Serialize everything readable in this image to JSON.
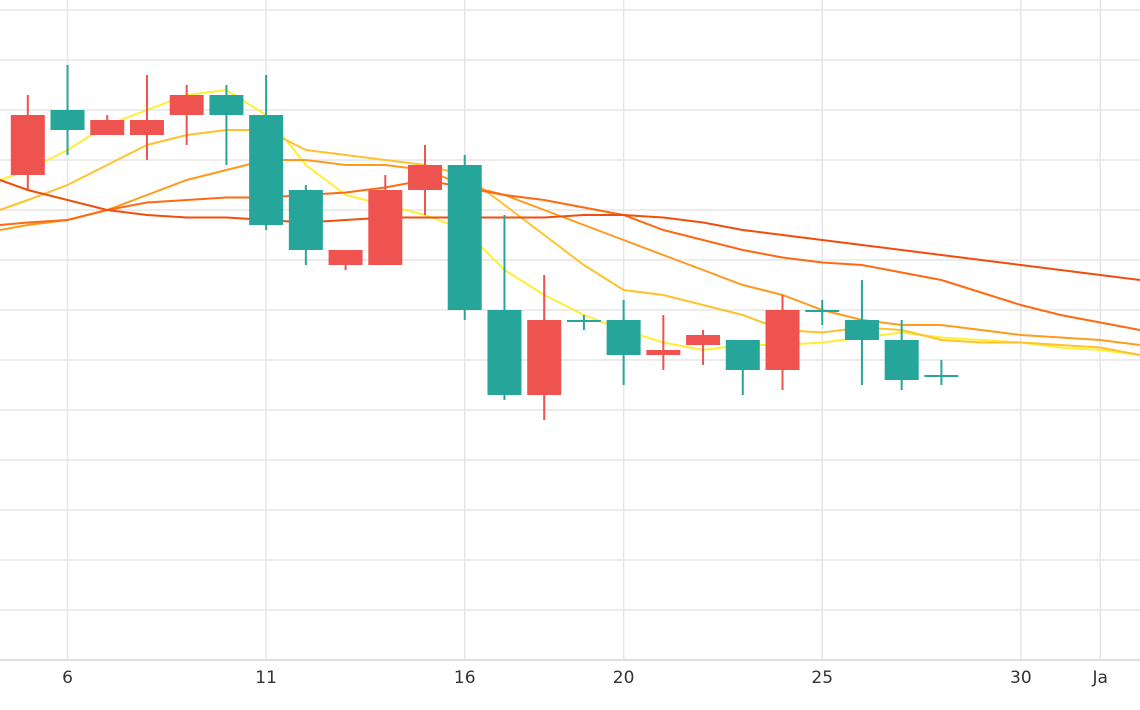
{
  "chart_data": {
    "type": "candlestick",
    "x_tick_labels": [
      {
        "x": 6,
        "label": "6"
      },
      {
        "x": 11,
        "label": "11"
      },
      {
        "x": 16,
        "label": "16"
      },
      {
        "x": 20,
        "label": "20"
      },
      {
        "x": 25,
        "label": "25"
      },
      {
        "x": 30,
        "label": "30"
      },
      {
        "x": 32,
        "label": "Ja"
      }
    ],
    "xlim": [
      4.3,
      33.0
    ],
    "ylim": [
      0,
      13
    ],
    "grid": true,
    "candles": [
      {
        "x": 5,
        "open": 9.7,
        "close": 10.9,
        "high": 11.3,
        "low": 9.4
      },
      {
        "x": 6,
        "open": 11.0,
        "close": 10.6,
        "high": 11.9,
        "low": 10.1
      },
      {
        "x": 7,
        "open": 10.5,
        "close": 10.8,
        "high": 10.9,
        "low": 10.5
      },
      {
        "x": 8,
        "open": 10.5,
        "close": 10.8,
        "high": 11.7,
        "low": 10.0
      },
      {
        "x": 9,
        "open": 10.9,
        "close": 11.3,
        "high": 11.5,
        "low": 10.3
      },
      {
        "x": 10,
        "open": 11.3,
        "close": 10.9,
        "high": 11.5,
        "low": 9.9
      },
      {
        "x": 11,
        "open": 10.9,
        "close": 8.7,
        "high": 11.7,
        "low": 8.6
      },
      {
        "x": 12,
        "open": 9.4,
        "close": 8.2,
        "high": 9.5,
        "low": 7.9
      },
      {
        "x": 13,
        "open": 7.9,
        "close": 8.2,
        "high": 8.2,
        "low": 7.8
      },
      {
        "x": 14,
        "open": 7.9,
        "close": 9.4,
        "high": 9.7,
        "low": 7.9
      },
      {
        "x": 15,
        "open": 9.4,
        "close": 9.9,
        "high": 10.3,
        "low": 8.9
      },
      {
        "x": 16,
        "open": 9.9,
        "close": 7.0,
        "high": 10.1,
        "low": 6.8
      },
      {
        "x": 17,
        "open": 7.0,
        "close": 5.3,
        "high": 8.9,
        "low": 5.2
      },
      {
        "x": 18,
        "open": 5.3,
        "close": 6.8,
        "high": 7.7,
        "low": 4.8
      },
      {
        "x": 19,
        "open": 6.8,
        "close": 6.8,
        "high": 6.9,
        "low": 6.6
      },
      {
        "x": 20,
        "open": 6.8,
        "close": 6.1,
        "high": 7.2,
        "low": 5.5
      },
      {
        "x": 21,
        "open": 6.1,
        "close": 6.2,
        "high": 6.9,
        "low": 5.8
      },
      {
        "x": 22,
        "open": 6.3,
        "close": 6.5,
        "high": 6.6,
        "low": 5.9
      },
      {
        "x": 23,
        "open": 6.4,
        "close": 5.8,
        "high": 6.4,
        "low": 5.3
      },
      {
        "x": 24,
        "open": 5.8,
        "close": 7.0,
        "high": 7.3,
        "low": 5.4
      },
      {
        "x": 25,
        "open": 7.0,
        "close": 7.0,
        "high": 7.2,
        "low": 6.7
      },
      {
        "x": 26,
        "open": 6.8,
        "close": 6.4,
        "high": 7.6,
        "low": 5.5
      },
      {
        "x": 27,
        "open": 6.4,
        "close": 5.6,
        "high": 6.8,
        "low": 5.4
      },
      {
        "x": 28,
        "open": 5.7,
        "close": 5.7,
        "high": 6.0,
        "low": 5.5
      }
    ],
    "moving_averages": [
      {
        "color": "#ffee33",
        "points": [
          [
            4.3,
            9.6
          ],
          [
            5,
            9.8
          ],
          [
            6,
            10.2
          ],
          [
            7,
            10.7
          ],
          [
            8,
            11.0
          ],
          [
            9,
            11.3
          ],
          [
            10,
            11.4
          ],
          [
            11,
            10.9
          ],
          [
            12,
            9.9
          ],
          [
            13,
            9.3
          ],
          [
            14,
            9.1
          ],
          [
            15,
            8.9
          ],
          [
            16,
            8.6
          ],
          [
            17,
            7.8
          ],
          [
            18,
            7.3
          ],
          [
            19,
            6.9
          ],
          [
            20,
            6.6
          ],
          [
            21,
            6.35
          ],
          [
            22,
            6.2
          ],
          [
            23,
            6.3
          ],
          [
            24,
            6.3
          ],
          [
            25,
            6.35
          ],
          [
            26,
            6.45
          ],
          [
            27,
            6.55
          ],
          [
            28,
            6.45
          ],
          [
            29,
            6.4
          ],
          [
            30,
            6.35
          ],
          [
            31,
            6.25
          ],
          [
            32,
            6.2
          ],
          [
            33,
            6.1
          ]
        ]
      },
      {
        "color": "#ffc12e",
        "points": [
          [
            4.3,
            9.0
          ],
          [
            5,
            9.2
          ],
          [
            6,
            9.5
          ],
          [
            7,
            9.9
          ],
          [
            8,
            10.3
          ],
          [
            9,
            10.5
          ],
          [
            10,
            10.6
          ],
          [
            11,
            10.6
          ],
          [
            12,
            10.2
          ],
          [
            13,
            10.1
          ],
          [
            14,
            10.0
          ],
          [
            15,
            9.9
          ],
          [
            16,
            9.7
          ],
          [
            17,
            9.1
          ],
          [
            18,
            8.5
          ],
          [
            19,
            7.9
          ],
          [
            20,
            7.4
          ],
          [
            21,
            7.3
          ],
          [
            22,
            7.1
          ],
          [
            23,
            6.9
          ],
          [
            24,
            6.6
          ],
          [
            25,
            6.55
          ],
          [
            26,
            6.65
          ],
          [
            27,
            6.6
          ],
          [
            28,
            6.4
          ],
          [
            29,
            6.35
          ],
          [
            30,
            6.35
          ],
          [
            31,
            6.3
          ],
          [
            32,
            6.25
          ],
          [
            33,
            6.1
          ]
        ]
      },
      {
        "color": "#ff9a1f",
        "points": [
          [
            4.3,
            8.6
          ],
          [
            5,
            8.7
          ],
          [
            6,
            8.8
          ],
          [
            7,
            9.0
          ],
          [
            8,
            9.3
          ],
          [
            9,
            9.6
          ],
          [
            10,
            9.8
          ],
          [
            11,
            10.0
          ],
          [
            12,
            10.0
          ],
          [
            13,
            9.9
          ],
          [
            14,
            9.9
          ],
          [
            15,
            9.8
          ],
          [
            16,
            9.5
          ],
          [
            17,
            9.3
          ],
          [
            18,
            9.0
          ],
          [
            19,
            8.7
          ],
          [
            20,
            8.4
          ],
          [
            21,
            8.1
          ],
          [
            22,
            7.8
          ],
          [
            23,
            7.5
          ],
          [
            24,
            7.3
          ],
          [
            25,
            7.0
          ],
          [
            26,
            6.8
          ],
          [
            27,
            6.7
          ],
          [
            28,
            6.7
          ],
          [
            29,
            6.6
          ],
          [
            30,
            6.5
          ],
          [
            31,
            6.45
          ],
          [
            32,
            6.4
          ],
          [
            33,
            6.3
          ]
        ]
      },
      {
        "color": "#ff6a10",
        "points": [
          [
            4.3,
            8.7
          ],
          [
            5,
            8.75
          ],
          [
            6,
            8.8
          ],
          [
            7,
            9.0
          ],
          [
            8,
            9.15
          ],
          [
            9,
            9.2
          ],
          [
            10,
            9.25
          ],
          [
            11,
            9.25
          ],
          [
            12,
            9.3
          ],
          [
            13,
            9.35
          ],
          [
            14,
            9.45
          ],
          [
            15,
            9.6
          ],
          [
            16,
            9.45
          ],
          [
            17,
            9.3
          ],
          [
            18,
            9.2
          ],
          [
            19,
            9.05
          ],
          [
            20,
            8.9
          ],
          [
            21,
            8.6
          ],
          [
            22,
            8.4
          ],
          [
            23,
            8.2
          ],
          [
            24,
            8.05
          ],
          [
            25,
            7.95
          ],
          [
            26,
            7.9
          ],
          [
            27,
            7.75
          ],
          [
            28,
            7.6
          ],
          [
            29,
            7.35
          ],
          [
            30,
            7.1
          ],
          [
            31,
            6.9
          ],
          [
            32,
            6.75
          ],
          [
            33,
            6.6
          ]
        ]
      },
      {
        "color": "#f04e0d",
        "points": [
          [
            4.3,
            9.6
          ],
          [
            5,
            9.4
          ],
          [
            6,
            9.2
          ],
          [
            7,
            9.0
          ],
          [
            8,
            8.9
          ],
          [
            9,
            8.85
          ],
          [
            10,
            8.85
          ],
          [
            11,
            8.8
          ],
          [
            12,
            8.75
          ],
          [
            13,
            8.8
          ],
          [
            14,
            8.85
          ],
          [
            15,
            8.85
          ],
          [
            16,
            8.85
          ],
          [
            17,
            8.85
          ],
          [
            18,
            8.85
          ],
          [
            19,
            8.9
          ],
          [
            20,
            8.9
          ],
          [
            21,
            8.85
          ],
          [
            22,
            8.75
          ],
          [
            23,
            8.6
          ],
          [
            24,
            8.5
          ],
          [
            25,
            8.4
          ],
          [
            26,
            8.3
          ],
          [
            27,
            8.2
          ],
          [
            28,
            8.1
          ],
          [
            29,
            8.0
          ],
          [
            30,
            7.9
          ],
          [
            31,
            7.8
          ],
          [
            32,
            7.7
          ],
          [
            33,
            7.6
          ]
        ]
      }
    ],
    "colors": {
      "up": "#ef5350",
      "down": "#26a69a",
      "grid": "#e6e6e6",
      "tick_text": "#333333"
    }
  }
}
